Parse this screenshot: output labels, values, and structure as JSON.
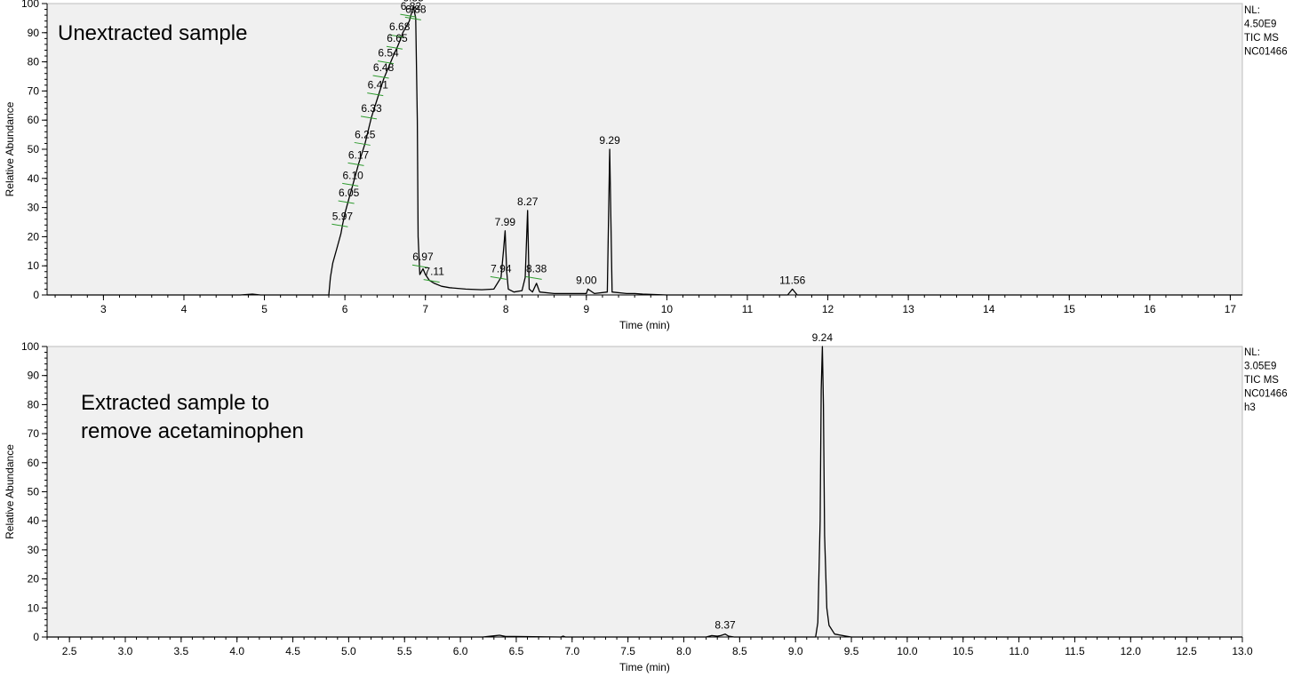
{
  "colors": {
    "plot_bg": "#f0f0f0",
    "trace": "#000000",
    "peak_marker": "#2e9b2e",
    "axis": "#000000"
  },
  "chart_data": [
    {
      "type": "line",
      "title": "",
      "sample_label": [
        "Unextracted sample"
      ],
      "info": [
        "NL:",
        "4.50E9",
        "TIC  MS",
        "NC01466"
      ],
      "xlabel": "Time (min)",
      "ylabel": "Relative Abundance",
      "xlim": [
        2.3,
        17.15
      ],
      "ylim": [
        0,
        100
      ],
      "xticks": [
        3,
        4,
        5,
        6,
        7,
        8,
        9,
        10,
        11,
        12,
        13,
        14,
        15,
        16,
        17
      ],
      "xtick_labels": [
        "3",
        "4",
        "5",
        "6",
        "7",
        "8",
        "9",
        "10",
        "11",
        "12",
        "13",
        "14",
        "15",
        "16",
        "17"
      ],
      "yticks": [
        0,
        10,
        20,
        30,
        40,
        50,
        60,
        70,
        80,
        90,
        100
      ],
      "ytick_labels": [
        "0",
        "10",
        "20",
        "30",
        "40",
        "50",
        "60",
        "70",
        "80",
        "90",
        "100"
      ],
      "series": [
        {
          "x": [
            2.3,
            4.7,
            4.85,
            4.95,
            5.8,
            5.82,
            5.85,
            5.9,
            5.95,
            5.97,
            6.0,
            6.05,
            6.1,
            6.17,
            6.25,
            6.33,
            6.41,
            6.48,
            6.54,
            6.6,
            6.65,
            6.68,
            6.72,
            6.76,
            6.8,
            6.82,
            6.85,
            6.88,
            6.9,
            6.91,
            6.93,
            6.95,
            6.97,
            7.0,
            7.05,
            7.11,
            7.2,
            7.3,
            7.5,
            7.7,
            7.85,
            7.94,
            7.97,
            7.99,
            8.01,
            8.03,
            8.1,
            8.2,
            8.24,
            8.27,
            8.29,
            8.33,
            8.38,
            8.42,
            8.6,
            8.8,
            9.0,
            9.02,
            9.1,
            9.26,
            9.29,
            9.32,
            9.5,
            9.6,
            9.7,
            10.0,
            11.0,
            11.5,
            11.56,
            11.62,
            12.0,
            17.15
          ],
          "y": [
            0,
            0,
            0.3,
            0,
            0,
            6,
            11,
            16,
            21,
            24,
            28,
            33,
            38,
            45,
            52,
            61,
            68,
            74,
            78,
            82,
            85,
            87,
            90,
            92,
            94,
            96,
            99,
            95,
            60,
            20,
            7,
            8,
            9,
            7,
            5,
            4,
            3,
            2.5,
            2,
            1.8,
            2,
            6,
            15,
            22,
            8,
            2,
            1,
            1.5,
            6,
            29,
            2,
            1,
            4,
            1,
            0.5,
            0.5,
            0.5,
            2,
            0.5,
            1,
            50,
            1,
            0.5,
            0.5,
            0.3,
            0,
            0,
            0,
            2,
            0,
            0,
            0
          ]
        }
      ],
      "annotations": [
        {
          "x": 6.85,
          "y": 99,
          "label": "6.85"
        },
        {
          "x": 6.82,
          "y": 96,
          "label": "6.82",
          "marker": true
        },
        {
          "x": 6.88,
          "y": 95,
          "label": "6.88",
          "marker": true
        },
        {
          "x": 6.68,
          "y": 89,
          "label": "6.68",
          "marker": true
        },
        {
          "x": 6.65,
          "y": 85,
          "label": "6.65",
          "marker": true
        },
        {
          "x": 6.54,
          "y": 80,
          "label": "6.54",
          "marker": true
        },
        {
          "x": 6.48,
          "y": 75,
          "label": "6.48",
          "marker": true
        },
        {
          "x": 6.41,
          "y": 69,
          "label": "6.41",
          "marker": true
        },
        {
          "x": 6.33,
          "y": 61,
          "label": "6.33",
          "marker": true
        },
        {
          "x": 6.25,
          "y": 52,
          "label": "6.25",
          "marker": true
        },
        {
          "x": 6.17,
          "y": 45,
          "label": "6.17",
          "marker": true
        },
        {
          "x": 6.1,
          "y": 38,
          "label": "6.10",
          "marker": true
        },
        {
          "x": 6.05,
          "y": 32,
          "label": "6.05",
          "marker": true
        },
        {
          "x": 5.97,
          "y": 24,
          "label": "5.97",
          "marker": true
        },
        {
          "x": 6.97,
          "y": 10,
          "label": "6.97",
          "marker": true
        },
        {
          "x": 7.11,
          "y": 5,
          "label": "7.11",
          "marker": true
        },
        {
          "x": 7.94,
          "y": 6,
          "label": "7.94",
          "marker": true
        },
        {
          "x": 7.99,
          "y": 22,
          "label": "7.99"
        },
        {
          "x": 8.27,
          "y": 29,
          "label": "8.27"
        },
        {
          "x": 8.38,
          "y": 6,
          "label": "8.38",
          "marker": true
        },
        {
          "x": 9.0,
          "y": 2,
          "label": "9.00"
        },
        {
          "x": 9.29,
          "y": 50,
          "label": "9.29"
        },
        {
          "x": 11.56,
          "y": 2,
          "label": "11.56"
        }
      ]
    },
    {
      "type": "line",
      "title": "",
      "sample_label": [
        "Extracted sample to",
        "remove acetaminophen"
      ],
      "info": [
        "NL:",
        "3.05E9",
        "TIC  MS",
        "NC01466",
        "h3"
      ],
      "xlabel": "Time (min)",
      "ylabel": "Relative Abundance",
      "xlim": [
        2.3,
        13.0
      ],
      "ylim": [
        0,
        100
      ],
      "xticks": [
        2.5,
        3.0,
        3.5,
        4.0,
        4.5,
        5.0,
        5.5,
        6.0,
        6.5,
        7.0,
        7.5,
        8.0,
        8.5,
        9.0,
        9.5,
        10.0,
        10.5,
        11.0,
        11.5,
        12.0,
        12.5,
        13.0
      ],
      "xtick_labels": [
        "2.5",
        "3.0",
        "3.5",
        "4.0",
        "4.5",
        "5.0",
        "5.5",
        "6.0",
        "6.5",
        "7.0",
        "7.5",
        "8.0",
        "8.5",
        "9.0",
        "9.5",
        "10.0",
        "10.5",
        "11.0",
        "11.5",
        "12.0",
        "12.5",
        "13.0"
      ],
      "yticks": [
        0,
        10,
        20,
        30,
        40,
        50,
        60,
        70,
        80,
        90,
        100
      ],
      "ytick_labels": [
        "0",
        "10",
        "20",
        "30",
        "40",
        "50",
        "60",
        "70",
        "80",
        "90",
        "100"
      ],
      "series": [
        {
          "x": [
            2.3,
            6.2,
            6.3,
            6.35,
            6.4,
            6.9,
            6.92,
            6.94,
            8.2,
            8.25,
            8.3,
            8.33,
            8.37,
            8.4,
            8.45,
            9.18,
            9.2,
            9.22,
            9.23,
            9.24,
            9.25,
            9.26,
            9.28,
            9.3,
            9.35,
            9.45,
            9.5,
            13.0
          ],
          "y": [
            0,
            0,
            0.4,
            0.6,
            0.2,
            0,
            0.3,
            0,
            0,
            0.5,
            0.3,
            0.5,
            1,
            0.3,
            0,
            0,
            5,
            40,
            85,
            100,
            80,
            35,
            10,
            4,
            1,
            0.3,
            0,
            0
          ]
        }
      ],
      "annotations": [
        {
          "x": 9.24,
          "y": 100,
          "label": "9.24"
        },
        {
          "x": 8.37,
          "y": 1,
          "label": "8.37"
        }
      ]
    }
  ]
}
